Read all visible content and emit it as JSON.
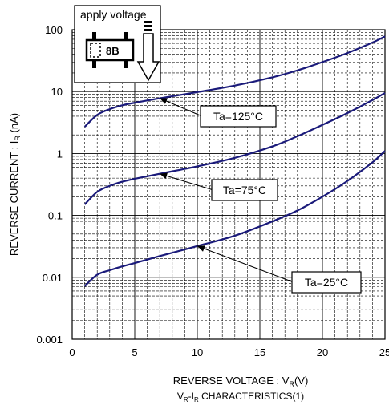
{
  "chart_data": {
    "type": "line",
    "title": "",
    "caption_main": "V",
    "caption_sub": "R",
    "caption_dash": "-I",
    "caption_sub2": "R",
    "caption_tail": " CHARACTERISTICS(1)",
    "xlabel_main": "REVERSE VOLTAGE : V",
    "xlabel_sub": "R",
    "xlabel_tail": "(V)",
    "ylabel_main": "REVERSE CURRENT : I",
    "ylabel_sub": "R",
    "ylabel_tail": " (nA)",
    "xlim": [
      0,
      25
    ],
    "ylim": [
      0.001,
      100
    ],
    "y_scale": "log",
    "grid": true,
    "x_ticks": [
      "0",
      "5",
      "10",
      "15",
      "20",
      "25"
    ],
    "x_tick_values": [
      0,
      5,
      10,
      15,
      20,
      25
    ],
    "y_ticks": [
      "0.001",
      "0.01",
      "0.1",
      "1",
      "10",
      "100"
    ],
    "y_tick_values": [
      0.001,
      0.01,
      0.1,
      1,
      10,
      100
    ],
    "series": [
      {
        "name": "Ta=125°C",
        "color": "#1a1a7a",
        "x": [
          1,
          2,
          3,
          4,
          5,
          7,
          10,
          13,
          16,
          18,
          20,
          22,
          24,
          25
        ],
        "y": [
          2.7,
          4.2,
          5.2,
          6.0,
          6.6,
          7.8,
          9.8,
          12.5,
          17,
          22,
          30,
          42,
          62,
          78
        ]
      },
      {
        "name": "Ta=75°C",
        "color": "#1a1a7a",
        "x": [
          1,
          2,
          3,
          4,
          5,
          7,
          10,
          13,
          16,
          18,
          20,
          22,
          24,
          25
        ],
        "y": [
          0.15,
          0.24,
          0.3,
          0.35,
          0.39,
          0.47,
          0.62,
          0.85,
          1.3,
          1.9,
          2.9,
          4.5,
          7.3,
          9.5
        ]
      },
      {
        "name": "Ta=25°C",
        "color": "#1a1a7a",
        "x": [
          1,
          2,
          3,
          4,
          5,
          7,
          10,
          13,
          16,
          18,
          20,
          22,
          24,
          25
        ],
        "y": [
          0.0072,
          0.011,
          0.013,
          0.015,
          0.017,
          0.022,
          0.032,
          0.047,
          0.08,
          0.12,
          0.2,
          0.36,
          0.72,
          1.1
        ]
      }
    ],
    "annotations": [
      {
        "label": "Ta=125°C",
        "point_x": 7,
        "point_y": 7.8
      },
      {
        "label": "Ta=75°C",
        "point_x": 7,
        "point_y": 0.47
      },
      {
        "label": "Ta=25°C",
        "point_x": 10,
        "point_y": 0.032
      }
    ],
    "inset": {
      "label": "apply voltage",
      "package_code": "8B"
    }
  }
}
